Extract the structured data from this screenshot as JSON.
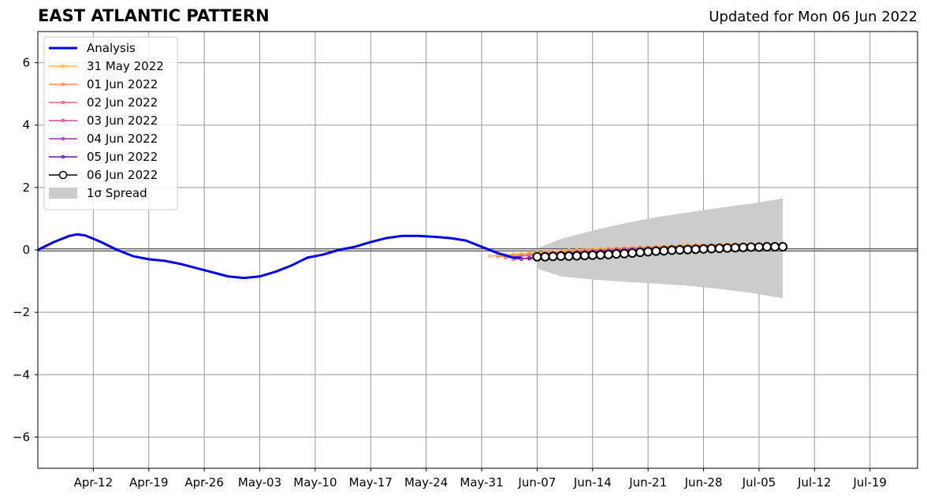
{
  "chart_data": {
    "type": "line",
    "title": "EAST ATLANTIC PATTERN",
    "subtitle": "Updated for Mon 06 Jun 2022",
    "xlabel": "",
    "ylabel": "",
    "x_start": "2022-04-05",
    "x_end": "2022-07-25",
    "ylim": [
      -7,
      7
    ],
    "yticks": [
      -6,
      -4,
      -2,
      0,
      2,
      4,
      6
    ],
    "ytick_labels": [
      "−6",
      "−4",
      "−2",
      "0",
      "2",
      "4",
      "6"
    ],
    "xticks": [
      "2022-04-12",
      "2022-04-19",
      "2022-04-26",
      "2022-05-03",
      "2022-05-10",
      "2022-05-17",
      "2022-05-24",
      "2022-05-31",
      "2022-06-07",
      "2022-06-14",
      "2022-06-21",
      "2022-06-28",
      "2022-07-05",
      "2022-07-12",
      "2022-07-19"
    ],
    "xtick_labels": [
      "Apr-12",
      "Apr-19",
      "Apr-26",
      "May-03",
      "May-10",
      "May-17",
      "May-24",
      "May-31",
      "Jun-07",
      "Jun-14",
      "Jun-21",
      "Jun-28",
      "Jul-05",
      "Jul-12",
      "Jul-19"
    ],
    "grid": true,
    "legend_position": "top-left",
    "analysis": {
      "name": "Analysis",
      "color": "#0000ee",
      "points": [
        [
          "2022-04-05",
          0.0
        ],
        [
          "2022-04-07",
          0.25
        ],
        [
          "2022-04-09",
          0.45
        ],
        [
          "2022-04-10",
          0.5
        ],
        [
          "2022-04-11",
          0.46
        ],
        [
          "2022-04-13",
          0.25
        ],
        [
          "2022-04-15",
          0.0
        ],
        [
          "2022-04-17",
          -0.2
        ],
        [
          "2022-04-19",
          -0.3
        ],
        [
          "2022-04-21",
          -0.35
        ],
        [
          "2022-04-23",
          -0.45
        ],
        [
          "2022-04-26",
          -0.65
        ],
        [
          "2022-04-29",
          -0.85
        ],
        [
          "2022-05-01",
          -0.9
        ],
        [
          "2022-05-03",
          -0.85
        ],
        [
          "2022-05-05",
          -0.7
        ],
        [
          "2022-05-07",
          -0.5
        ],
        [
          "2022-05-09",
          -0.25
        ],
        [
          "2022-05-11",
          -0.15
        ],
        [
          "2022-05-13",
          0.0
        ],
        [
          "2022-05-15",
          0.1
        ],
        [
          "2022-05-17",
          0.25
        ],
        [
          "2022-05-19",
          0.38
        ],
        [
          "2022-05-21",
          0.45
        ],
        [
          "2022-05-23",
          0.45
        ],
        [
          "2022-05-25",
          0.42
        ],
        [
          "2022-05-27",
          0.38
        ],
        [
          "2022-05-29",
          0.3
        ],
        [
          "2022-05-31",
          0.1
        ],
        [
          "2022-06-02",
          -0.1
        ],
        [
          "2022-06-04",
          -0.25
        ],
        [
          "2022-06-05",
          -0.25
        ]
      ]
    },
    "spread": {
      "name": "1σ Spread",
      "color": "#cccccc",
      "start": "2022-06-07",
      "end": "2022-07-08",
      "upper": [
        [
          "2022-06-07",
          0.05
        ],
        [
          "2022-06-10",
          0.35
        ],
        [
          "2022-06-14",
          0.62
        ],
        [
          "2022-06-18",
          0.85
        ],
        [
          "2022-06-22",
          1.05
        ],
        [
          "2022-06-26",
          1.2
        ],
        [
          "2022-06-30",
          1.35
        ],
        [
          "2022-07-04",
          1.48
        ],
        [
          "2022-07-08",
          1.65
        ]
      ],
      "lower": [
        [
          "2022-06-07",
          -0.6
        ],
        [
          "2022-06-10",
          -0.85
        ],
        [
          "2022-06-14",
          -0.95
        ],
        [
          "2022-06-18",
          -1.02
        ],
        [
          "2022-06-22",
          -1.08
        ],
        [
          "2022-06-26",
          -1.15
        ],
        [
          "2022-06-30",
          -1.25
        ],
        [
          "2022-07-04",
          -1.38
        ],
        [
          "2022-07-08",
          -1.55
        ]
      ]
    },
    "forecasts": [
      {
        "name": "31 May 2022",
        "color": "#f8b84c",
        "start": "2022-06-01",
        "values": [
          -0.2,
          -0.18,
          -0.16,
          -0.14,
          -0.12,
          -0.1,
          -0.08,
          -0.06,
          -0.05,
          -0.03,
          -0.01,
          0.0,
          0.02,
          0.03,
          0.04,
          0.05,
          0.06,
          0.07,
          0.08,
          0.09,
          0.1,
          0.11,
          0.12,
          0.13,
          0.14,
          0.15,
          0.16,
          0.16,
          0.17,
          0.18,
          0.18,
          0.19,
          0.19,
          0.2,
          0.2,
          0.2
        ]
      },
      {
        "name": "01 Jun 2022",
        "color": "#f08a50",
        "start": "2022-06-02",
        "values": [
          -0.22,
          -0.2,
          -0.18,
          -0.16,
          -0.14,
          -0.12,
          -0.1,
          -0.08,
          -0.06,
          -0.05,
          -0.03,
          -0.02,
          0.0,
          0.01,
          0.03,
          0.04,
          0.05,
          0.06,
          0.07,
          0.08,
          0.09,
          0.1,
          0.11,
          0.12,
          0.13,
          0.14,
          0.15,
          0.15,
          0.16,
          0.16,
          0.17,
          0.17,
          0.18,
          0.18
        ]
      },
      {
        "name": "02 Jun 2022",
        "color": "#e06878",
        "start": "2022-06-03",
        "values": [
          -0.25,
          -0.23,
          -0.2,
          -0.18,
          -0.15,
          -0.12,
          -0.1,
          -0.08,
          -0.07,
          -0.05,
          -0.03,
          -0.02,
          0.0,
          0.01,
          0.02,
          0.04,
          0.05,
          0.06,
          0.07,
          0.08,
          0.09,
          0.1,
          0.11,
          0.12,
          0.13,
          0.14,
          0.14,
          0.15,
          0.16,
          0.16,
          0.17,
          0.17,
          0.18
        ]
      },
      {
        "name": "03 Jun 2022",
        "color": "#c54ca0",
        "start": "2022-06-04",
        "values": [
          -0.3,
          -0.28,
          -0.25,
          -0.22,
          -0.18,
          -0.15,
          -0.12,
          -0.1,
          -0.08,
          -0.06,
          -0.05,
          -0.03,
          -0.02,
          0.0,
          0.01,
          0.02,
          0.03,
          0.05,
          0.06,
          0.07,
          0.08,
          0.09,
          0.1,
          0.1,
          0.11,
          0.12,
          0.13,
          0.14,
          0.14,
          0.15,
          0.15,
          0.16
        ]
      },
      {
        "name": "04 Jun 2022",
        "color": "#9932b0",
        "start": "2022-06-05",
        "values": [
          -0.3,
          -0.27,
          -0.24,
          -0.2,
          -0.17,
          -0.14,
          -0.12,
          -0.1,
          -0.08,
          -0.06,
          -0.05,
          -0.03,
          -0.02,
          -0.01,
          0.0,
          0.02,
          0.03,
          0.04,
          0.05,
          0.06,
          0.07,
          0.08,
          0.09,
          0.1,
          0.1,
          0.11,
          0.12,
          0.12,
          0.13,
          0.14,
          0.14
        ]
      },
      {
        "name": "05 Jun 2022",
        "color": "#5a1a9a",
        "start": "2022-06-06",
        "values": [
          -0.28,
          -0.26,
          -0.24,
          -0.21,
          -0.19,
          -0.16,
          -0.14,
          -0.12,
          -0.1,
          -0.08,
          -0.06,
          -0.05,
          -0.04,
          -0.03,
          -0.01,
          0.0,
          0.01,
          0.02,
          0.03,
          0.04,
          0.05,
          0.06,
          0.07,
          0.08,
          0.08,
          0.09,
          0.1,
          0.1,
          0.11,
          0.11
        ]
      },
      {
        "name": "06 Jun 2022",
        "color": "#000000",
        "start": "2022-06-07",
        "values": [
          -0.22,
          -0.22,
          -0.21,
          -0.2,
          -0.2,
          -0.19,
          -0.18,
          -0.17,
          -0.16,
          -0.15,
          -0.13,
          -0.12,
          -0.1,
          -0.08,
          -0.06,
          -0.04,
          -0.03,
          -0.01,
          0.0,
          0.01,
          0.02,
          0.03,
          0.04,
          0.05,
          0.06,
          0.07,
          0.08,
          0.09,
          0.09,
          0.1,
          0.1,
          0.1
        ]
      }
    ]
  }
}
